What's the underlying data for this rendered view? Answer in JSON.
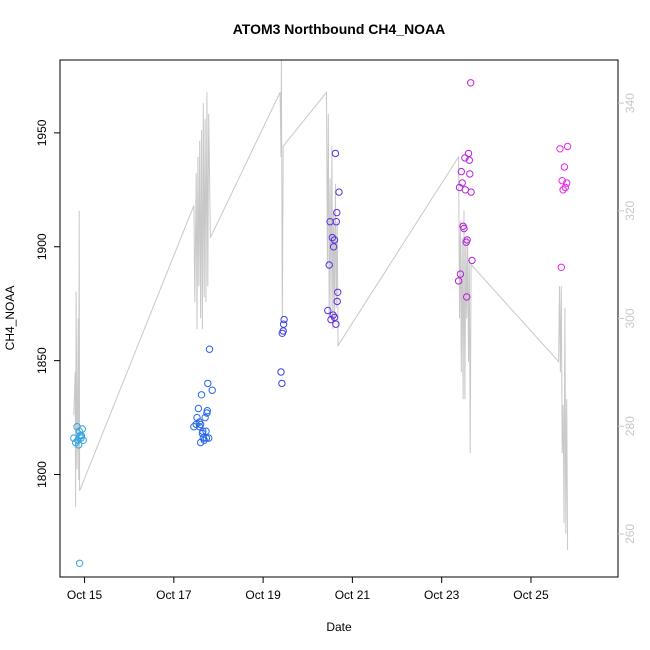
{
  "chart_data": {
    "type": "scatter",
    "title": "ATOM3 Northbound CH4_NOAA",
    "xlabel": "Date",
    "ylabel": "CH4_NOAA",
    "x_range": [
      "2017-10-14T00:00",
      "2017-10-26T00:00"
    ],
    "xlim_days": [
      14.45,
      26.95
    ],
    "ylim": [
      1755,
      1982
    ],
    "y_ticks": [
      1800,
      1850,
      1900,
      1950
    ],
    "x_ticks": [
      {
        "day": 15,
        "label": "Oct 15"
      },
      {
        "day": 17,
        "label": "Oct 17"
      },
      {
        "day": 19,
        "label": "Oct 19"
      },
      {
        "day": 21,
        "label": "Oct 21"
      },
      {
        "day": 23,
        "label": "Oct 23"
      },
      {
        "day": 25,
        "label": "Oct 25"
      }
    ],
    "y2_range": [
      252,
      348
    ],
    "y2_ticks": [
      260,
      280,
      300,
      320,
      340
    ],
    "grid": false,
    "legend": "none",
    "colors": {
      "background_series": "#c8c8c8",
      "axis": "#000000",
      "right_axis": "#c8c8c8",
      "point_gradient": [
        "#33aadd",
        "#2277ee",
        "#3344dd",
        "#7722dd",
        "#bb22dd",
        "#ee22ee"
      ]
    },
    "series": [
      {
        "type": "scatter",
        "values": [
          [
            14.76,
            1816
          ],
          [
            14.8,
            1814
          ],
          [
            14.85,
            1815
          ],
          [
            14.83,
            1821
          ],
          [
            14.88,
            1819
          ],
          [
            14.92,
            1816
          ],
          [
            14.95,
            1820
          ],
          [
            14.9,
            1817
          ],
          [
            14.97,
            1815
          ],
          [
            14.87,
            1813
          ],
          [
            14.93,
            1817
          ],
          [
            14.89,
            1761
          ],
          [
            17.45,
            1821
          ],
          [
            17.5,
            1822
          ],
          [
            17.52,
            1825
          ],
          [
            17.55,
            1829
          ],
          [
            17.57,
            1823
          ],
          [
            17.58,
            1821
          ],
          [
            17.6,
            1814
          ],
          [
            17.62,
            1835
          ],
          [
            17.64,
            1818
          ],
          [
            17.66,
            1816
          ],
          [
            17.68,
            1815
          ],
          [
            17.7,
            1825
          ],
          [
            17.72,
            1819
          ],
          [
            17.73,
            1816
          ],
          [
            17.74,
            1827
          ],
          [
            17.75,
            1828
          ],
          [
            17.76,
            1840
          ],
          [
            17.78,
            1816
          ],
          [
            17.8,
            1855
          ],
          [
            17.86,
            1837
          ],
          [
            17.6,
            1822
          ],
          [
            17.65,
            1819
          ],
          [
            19.4,
            1845
          ],
          [
            19.42,
            1840
          ],
          [
            19.43,
            1862
          ],
          [
            19.45,
            1863
          ],
          [
            19.46,
            1866
          ],
          [
            19.47,
            1868
          ],
          [
            20.45,
            1872
          ],
          [
            20.48,
            1892
          ],
          [
            20.5,
            1911
          ],
          [
            20.52,
            1868
          ],
          [
            20.55,
            1904
          ],
          [
            20.57,
            1870
          ],
          [
            20.58,
            1900
          ],
          [
            20.6,
            1869
          ],
          [
            20.62,
            1941
          ],
          [
            20.63,
            1866
          ],
          [
            20.64,
            1911
          ],
          [
            20.65,
            1915
          ],
          [
            20.66,
            1876
          ],
          [
            20.67,
            1880
          ],
          [
            20.7,
            1924
          ],
          [
            20.6,
            1903
          ],
          [
            23.38,
            1885
          ],
          [
            23.4,
            1926
          ],
          [
            23.42,
            1888
          ],
          [
            23.44,
            1933
          ],
          [
            23.46,
            1928
          ],
          [
            23.48,
            1909
          ],
          [
            23.5,
            1908
          ],
          [
            23.52,
            1939
          ],
          [
            23.53,
            1925
          ],
          [
            23.55,
            1902
          ],
          [
            23.56,
            1878
          ],
          [
            23.57,
            1903
          ],
          [
            23.6,
            1941
          ],
          [
            23.62,
            1938
          ],
          [
            23.63,
            1932
          ],
          [
            23.65,
            1972
          ],
          [
            23.66,
            1924
          ],
          [
            23.68,
            1894
          ],
          [
            25.65,
            1943
          ],
          [
            25.68,
            1891
          ],
          [
            25.7,
            1929
          ],
          [
            25.72,
            1925
          ],
          [
            25.75,
            1935
          ],
          [
            25.77,
            1926
          ],
          [
            25.8,
            1928
          ],
          [
            25.82,
            1944
          ]
        ]
      },
      {
        "type": "line",
        "axis": "right",
        "values": [
          [
            14.76,
            282
          ],
          [
            14.79,
            290
          ],
          [
            14.8,
            265
          ],
          [
            14.81,
            305
          ],
          [
            14.83,
            272
          ],
          [
            14.86,
            300
          ],
          [
            14.87,
            270
          ],
          [
            14.88,
            320
          ],
          [
            14.89,
            268
          ],
          [
            17.45,
            321
          ],
          [
            17.47,
            303
          ],
          [
            17.5,
            327
          ],
          [
            17.52,
            298
          ],
          [
            17.54,
            330
          ],
          [
            17.56,
            306
          ],
          [
            17.58,
            333
          ],
          [
            17.6,
            300
          ],
          [
            17.62,
            335
          ],
          [
            17.64,
            298
          ],
          [
            17.66,
            340
          ],
          [
            17.68,
            304
          ],
          [
            17.7,
            337
          ],
          [
            17.72,
            303
          ],
          [
            17.74,
            342
          ],
          [
            17.76,
            306
          ],
          [
            17.78,
            338
          ],
          [
            17.82,
            315
          ],
          [
            19.38,
            342
          ],
          [
            19.4,
            330
          ],
          [
            19.41,
            348
          ],
          [
            19.43,
            300
          ],
          [
            19.45,
            332
          ],
          [
            20.42,
            342
          ],
          [
            20.44,
            310
          ],
          [
            20.46,
            338
          ],
          [
            20.48,
            300
          ],
          [
            20.5,
            326
          ],
          [
            20.52,
            302
          ],
          [
            20.54,
            332
          ],
          [
            20.56,
            298
          ],
          [
            20.58,
            320
          ],
          [
            20.6,
            300
          ],
          [
            20.62,
            325
          ],
          [
            20.64,
            302
          ],
          [
            20.66,
            318
          ],
          [
            20.68,
            295
          ],
          [
            23.38,
            330
          ],
          [
            23.4,
            300
          ],
          [
            23.42,
            318
          ],
          [
            23.44,
            290
          ],
          [
            23.46,
            315
          ],
          [
            23.48,
            285
          ],
          [
            23.5,
            320
          ],
          [
            23.52,
            285
          ],
          [
            23.54,
            315
          ],
          [
            23.56,
            300
          ],
          [
            23.58,
            315
          ],
          [
            23.6,
            292
          ],
          [
            23.62,
            311
          ],
          [
            23.64,
            275
          ],
          [
            23.66,
            310
          ],
          [
            25.62,
            292
          ],
          [
            25.64,
            306
          ],
          [
            25.66,
            290
          ],
          [
            25.68,
            306
          ],
          [
            25.7,
            275
          ],
          [
            25.72,
            284
          ],
          [
            25.74,
            262
          ],
          [
            25.76,
            302
          ],
          [
            25.78,
            260
          ],
          [
            25.8,
            285
          ],
          [
            25.82,
            257
          ]
        ]
      }
    ]
  }
}
